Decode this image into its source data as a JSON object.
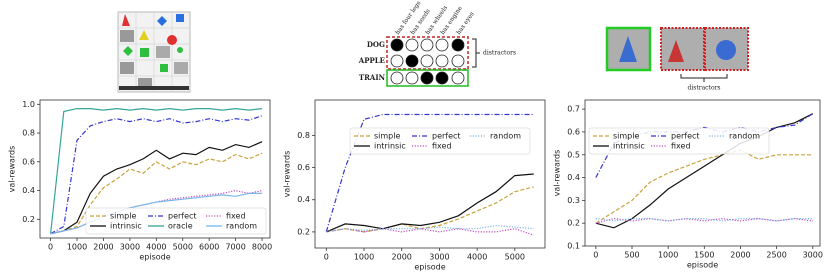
{
  "figure": {
    "panel2": {
      "attributes": [
        "has four legs",
        "has seeds",
        "has wheels",
        "has engine",
        "has eyes"
      ],
      "objects": [
        "DOG",
        "APPLE",
        "TRAIN"
      ],
      "bracket_label": "distractors"
    },
    "panel3": {
      "bracket_label": "distractors"
    }
  },
  "chart_data": [
    {
      "type": "line",
      "xlabel": "episode",
      "ylabel": "val-rewards",
      "legend": "lower right",
      "grid": false,
      "xlim": [
        -400,
        8300
      ],
      "ylim": [
        0.07,
        1.03
      ],
      "xticks": [
        0,
        1000,
        2000,
        3000,
        4000,
        5000,
        6000,
        7000,
        8000
      ],
      "yticks": [
        0.2,
        0.4,
        0.6,
        0.8,
        {
          "value": 1,
          "label": "1.0"
        }
      ],
      "x": [
        0,
        500,
        1000,
        1500,
        2000,
        2500,
        3000,
        3500,
        4000,
        4500,
        5000,
        5500,
        6000,
        6500,
        7000,
        7500,
        8000
      ],
      "series": [
        {
          "name": "simple",
          "color": "#c9a23e",
          "linestyle": "dashed",
          "values": [
            0.1,
            0.12,
            0.15,
            0.3,
            0.42,
            0.48,
            0.55,
            0.52,
            0.6,
            0.55,
            0.6,
            0.58,
            0.62,
            0.6,
            0.65,
            0.62,
            0.66
          ]
        },
        {
          "name": "intrinsic",
          "color": "#111111",
          "linestyle": "solid",
          "values": [
            0.1,
            0.12,
            0.18,
            0.38,
            0.5,
            0.55,
            0.58,
            0.62,
            0.68,
            0.62,
            0.66,
            0.65,
            0.7,
            0.68,
            0.72,
            0.7,
            0.74
          ]
        },
        {
          "name": "perfect",
          "color": "#3535d0",
          "linestyle": "dashdot",
          "values": [
            0.1,
            0.15,
            0.75,
            0.85,
            0.88,
            0.9,
            0.88,
            0.9,
            0.88,
            0.9,
            0.87,
            0.88,
            0.9,
            0.88,
            0.9,
            0.89,
            0.92
          ]
        },
        {
          "name": "oracle",
          "color": "#35a596",
          "linestyle": "solid",
          "values": [
            0.1,
            0.95,
            0.97,
            0.97,
            0.96,
            0.97,
            0.96,
            0.97,
            0.96,
            0.97,
            0.96,
            0.97,
            0.97,
            0.96,
            0.97,
            0.96,
            0.97
          ]
        },
        {
          "name": "fixed",
          "color": "#c04cc0",
          "linestyle": "dotted",
          "values": [
            0.1,
            0.12,
            0.14,
            0.18,
            0.22,
            0.25,
            0.28,
            0.3,
            0.32,
            0.34,
            0.35,
            0.36,
            0.37,
            0.38,
            0.4,
            0.38,
            0.4
          ]
        },
        {
          "name": "random",
          "color": "#7ab6ea",
          "linestyle": "solid",
          "values": [
            0.1,
            0.12,
            0.14,
            0.18,
            0.22,
            0.25,
            0.28,
            0.3,
            0.32,
            0.33,
            0.34,
            0.35,
            0.36,
            0.37,
            0.36,
            0.38,
            0.38
          ]
        }
      ]
    },
    {
      "type": "line",
      "xlabel": "episode",
      "ylabel": "val-rewards",
      "legend": "upper center",
      "grid": false,
      "xlim": [
        -300,
        5800
      ],
      "ylim": [
        0.1,
        1.02
      ],
      "xticks": [
        0,
        1000,
        2000,
        3000,
        4000,
        5000
      ],
      "yticks": [
        0.2,
        0.4,
        0.6,
        0.8
      ],
      "x": [
        0,
        500,
        1000,
        1500,
        2000,
        2500,
        3000,
        3500,
        4000,
        4500,
        5000,
        5500
      ],
      "series": [
        {
          "name": "simple",
          "color": "#c9a23e",
          "linestyle": "dashed",
          "values": [
            0.2,
            0.22,
            0.2,
            0.22,
            0.25,
            0.22,
            0.24,
            0.28,
            0.33,
            0.38,
            0.45,
            0.48
          ]
        },
        {
          "name": "intrinsic",
          "color": "#111111",
          "linestyle": "solid",
          "values": [
            0.2,
            0.25,
            0.24,
            0.22,
            0.25,
            0.24,
            0.26,
            0.3,
            0.38,
            0.45,
            0.55,
            0.56
          ]
        },
        {
          "name": "perfect",
          "color": "#3535d0",
          "linestyle": "dashdot",
          "values": [
            0.2,
            0.6,
            0.9,
            0.93,
            0.93,
            0.93,
            0.93,
            0.93,
            0.93,
            0.93,
            0.93,
            0.93
          ]
        },
        {
          "name": "fixed",
          "color": "#c04cc0",
          "linestyle": "dotted",
          "values": [
            0.2,
            0.22,
            0.2,
            0.22,
            0.2,
            0.22,
            0.2,
            0.22,
            0.2,
            0.2,
            0.22,
            0.18
          ]
        },
        {
          "name": "random",
          "color": "#7ab6ea",
          "linestyle": "dotted",
          "values": [
            0.2,
            0.22,
            0.21,
            0.22,
            0.22,
            0.22,
            0.23,
            0.22,
            0.22,
            0.24,
            0.23,
            0.22
          ]
        }
      ]
    },
    {
      "type": "line",
      "xlabel": "episode",
      "ylabel": "val-rewards",
      "legend": "upper left",
      "grid": false,
      "xlim": [
        -150,
        3100
      ],
      "ylim": [
        0.1,
        0.74
      ],
      "xticks": [
        0,
        500,
        1000,
        1500,
        2000,
        2500,
        3000
      ],
      "yticks": [
        0.1,
        0.2,
        0.3,
        0.4,
        0.5,
        0.6,
        0.7
      ],
      "x": [
        0,
        250,
        500,
        750,
        1000,
        1250,
        1500,
        1750,
        2000,
        2250,
        2500,
        2750,
        3000
      ],
      "series": [
        {
          "name": "simple",
          "color": "#c9a23e",
          "linestyle": "dashed",
          "values": [
            0.2,
            0.25,
            0.3,
            0.38,
            0.42,
            0.45,
            0.48,
            0.5,
            0.52,
            0.48,
            0.5,
            0.5,
            0.5
          ]
        },
        {
          "name": "intrinsic",
          "color": "#111111",
          "linestyle": "solid",
          "values": [
            0.2,
            0.18,
            0.22,
            0.28,
            0.35,
            0.4,
            0.45,
            0.5,
            0.55,
            0.58,
            0.62,
            0.64,
            0.68
          ]
        },
        {
          "name": "perfect",
          "color": "#3535d0",
          "linestyle": "dashdot",
          "values": [
            0.4,
            0.55,
            0.58,
            0.6,
            0.6,
            0.6,
            0.62,
            0.6,
            0.62,
            0.6,
            0.62,
            0.63,
            0.68
          ]
        },
        {
          "name": "fixed",
          "color": "#c04cc0",
          "linestyle": "dotted",
          "values": [
            0.2,
            0.22,
            0.21,
            0.22,
            0.21,
            0.22,
            0.21,
            0.22,
            0.21,
            0.22,
            0.21,
            0.22,
            0.21
          ]
        },
        {
          "name": "random",
          "color": "#7ab6ea",
          "linestyle": "dotted",
          "values": [
            0.22,
            0.21,
            0.22,
            0.22,
            0.21,
            0.22,
            0.22,
            0.21,
            0.22,
            0.22,
            0.21,
            0.22,
            0.22
          ]
        }
      ]
    }
  ]
}
